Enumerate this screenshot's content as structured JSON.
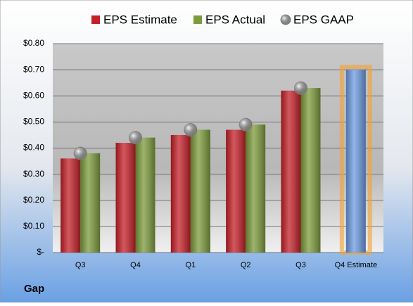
{
  "chart_data": {
    "type": "bar",
    "categories": [
      "Q3",
      "Q4",
      "Q1",
      "Q2",
      "Q3",
      "Q4 Estimate"
    ],
    "series": [
      {
        "name": "EPS Estimate",
        "color": "#c42028",
        "values": [
          0.36,
          0.42,
          0.45,
          0.47,
          0.62,
          null
        ]
      },
      {
        "name": "EPS Actual",
        "color": "#7d9b3c",
        "values": [
          0.38,
          0.44,
          0.47,
          0.49,
          0.63,
          null
        ]
      },
      {
        "name": "EPS GAAP",
        "color": "#a8a8a8",
        "type": "scatter",
        "values": [
          0.38,
          0.44,
          0.47,
          0.49,
          0.63,
          null
        ]
      },
      {
        "color": "#6d9be0",
        "highlight": "#f5a030",
        "values": [
          null,
          null,
          null,
          null,
          null,
          0.7
        ]
      }
    ],
    "ylim": [
      0,
      0.8
    ],
    "yticks": [
      {
        "value": 0,
        "label": "$-"
      },
      {
        "value": 0.1,
        "label": "$0.10"
      },
      {
        "value": 0.2,
        "label": "$0.20"
      },
      {
        "value": 0.3,
        "label": "$0.30"
      },
      {
        "value": 0.4,
        "label": "$0.40"
      },
      {
        "value": 0.5,
        "label": "$0.50"
      },
      {
        "value": 0.6,
        "label": "$0.60"
      },
      {
        "value": 0.7,
        "label": "$0.70"
      },
      {
        "value": 0.8,
        "label": "$0.80"
      }
    ],
    "grid": true,
    "footer": "Gap"
  }
}
